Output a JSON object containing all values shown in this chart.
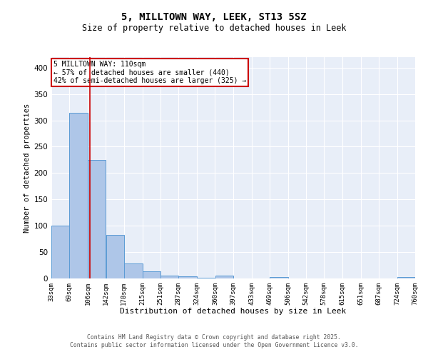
{
  "title1": "5, MILLTOWN WAY, LEEK, ST13 5SZ",
  "title2": "Size of property relative to detached houses in Leek",
  "xlabel": "Distribution of detached houses by size in Leek",
  "ylabel": "Number of detached properties",
  "footnote1": "Contains HM Land Registry data © Crown copyright and database right 2025.",
  "footnote2": "Contains public sector information licensed under the Open Government Licence v3.0.",
  "annotation_line1": "5 MILLTOWN WAY: 110sqm",
  "annotation_line2": "← 57% of detached houses are smaller (440)",
  "annotation_line3": "42% of semi-detached houses are larger (325) →",
  "property_size": 110,
  "bin_edges": [
    33,
    69,
    106,
    142,
    178,
    215,
    251,
    287,
    324,
    360,
    397,
    433,
    469,
    506,
    542,
    578,
    615,
    651,
    687,
    724,
    760
  ],
  "bar_heights": [
    100,
    315,
    225,
    83,
    28,
    13,
    5,
    4,
    2,
    6,
    0,
    0,
    3,
    0,
    0,
    0,
    0,
    0,
    0,
    3
  ],
  "bar_color": "#aec6e8",
  "bar_edge_color": "#5b9bd5",
  "red_line_color": "#cc0000",
  "annotation_box_color": "#cc0000",
  "background_color": "#e8eef8",
  "grid_color": "#ffffff",
  "ylim": [
    0,
    420
  ],
  "yticks": [
    0,
    50,
    100,
    150,
    200,
    250,
    300,
    350,
    400
  ]
}
